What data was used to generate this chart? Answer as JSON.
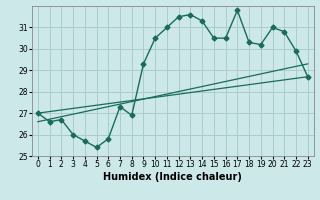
{
  "xlabel": "Humidex (Indice chaleur)",
  "bg_color": "#cce8e8",
  "grid_color": "#aacccc",
  "line_color": "#1a6b5a",
  "xlim": [
    -0.5,
    23.5
  ],
  "ylim": [
    25,
    32
  ],
  "yticks": [
    25,
    26,
    27,
    28,
    29,
    30,
    31
  ],
  "xticks": [
    0,
    1,
    2,
    3,
    4,
    5,
    6,
    7,
    8,
    9,
    10,
    11,
    12,
    13,
    14,
    15,
    16,
    17,
    18,
    19,
    20,
    21,
    22,
    23
  ],
  "main_line_x": [
    0,
    1,
    2,
    3,
    4,
    5,
    6,
    7,
    8,
    9,
    10,
    11,
    12,
    13,
    14,
    15,
    16,
    17,
    18,
    19,
    20,
    21,
    22,
    23
  ],
  "main_line_y": [
    27.0,
    26.6,
    26.7,
    26.0,
    25.7,
    25.4,
    25.8,
    27.3,
    26.9,
    29.3,
    30.5,
    31.0,
    31.5,
    31.6,
    31.3,
    30.5,
    30.5,
    31.8,
    30.3,
    30.2,
    31.0,
    30.8,
    29.9,
    28.7
  ],
  "trend1_x": [
    0,
    23
  ],
  "trend1_y": [
    27.0,
    28.7
  ],
  "trend2_x": [
    0,
    23
  ],
  "trend2_y": [
    26.6,
    29.3
  ],
  "tick_fontsize": 5.5,
  "xlabel_fontsize": 7
}
